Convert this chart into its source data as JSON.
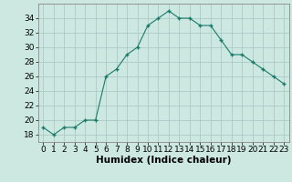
{
  "x": [
    0,
    1,
    2,
    3,
    4,
    5,
    6,
    7,
    8,
    9,
    10,
    11,
    12,
    13,
    14,
    15,
    16,
    17,
    18,
    19,
    20,
    21,
    22,
    23
  ],
  "y": [
    19,
    18,
    19,
    19,
    20,
    20,
    26,
    27,
    29,
    30,
    33,
    34,
    35,
    34,
    34,
    33,
    33,
    31,
    29,
    29,
    28,
    27,
    26,
    25
  ],
  "line_color": "#1a7a6a",
  "marker_color": "#1a7a6a",
  "bg_color": "#cce8e0",
  "grid_color": "#aaccC4",
  "xlabel": "Humidex (Indice chaleur)",
  "ylim": [
    17,
    36
  ],
  "xlim": [
    -0.5,
    23.5
  ],
  "yticks": [
    18,
    20,
    22,
    24,
    26,
    28,
    30,
    32,
    34
  ],
  "xticks": [
    0,
    1,
    2,
    3,
    4,
    5,
    6,
    7,
    8,
    9,
    10,
    11,
    12,
    13,
    14,
    15,
    16,
    17,
    18,
    19,
    20,
    21,
    22,
    23
  ],
  "label_fontsize": 7.5,
  "tick_fontsize": 6.5
}
